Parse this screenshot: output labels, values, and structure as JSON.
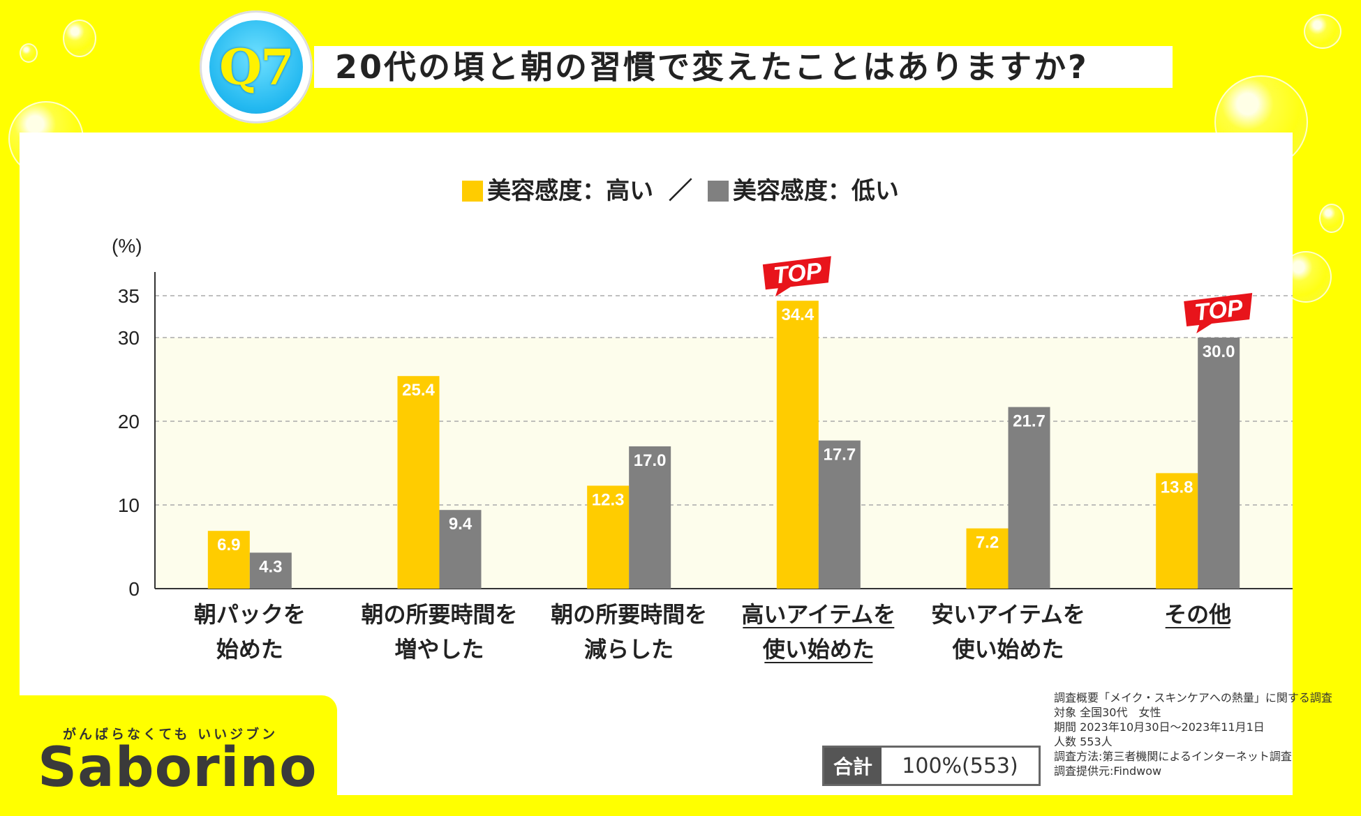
{
  "question": {
    "badge": "Q7",
    "title": "20代の頃と朝の習慣で変えたことはありますか?"
  },
  "legend": {
    "high": {
      "label": "美容感度：高い",
      "color": "#ffcc00"
    },
    "separator": "／",
    "low": {
      "label": "美容感度：低い",
      "color": "#808080"
    }
  },
  "top_badge_text": "TOP",
  "chart_data": {
    "type": "bar",
    "ylabel": "(%)",
    "ylim": [
      0,
      37.5
    ],
    "yticks": [
      0,
      10,
      20,
      30,
      35
    ],
    "grid": true,
    "categories": [
      [
        "朝パックを",
        "始めた"
      ],
      [
        "朝の所要時間を",
        "増やした"
      ],
      [
        "朝の所要時間を",
        "減らした"
      ],
      [
        "高いアイテムを",
        "使い始めた"
      ],
      [
        "安いアイテムを",
        "使い始めた"
      ],
      [
        "その他"
      ]
    ],
    "underlined_categories": [
      3,
      5
    ],
    "series": [
      {
        "name": "美容感度：高い",
        "color": "#ffcc00",
        "values": [
          6.9,
          25.4,
          12.3,
          34.4,
          7.2,
          13.8
        ]
      },
      {
        "name": "美容感度：低い",
        "color": "#808080",
        "values": [
          4.3,
          9.4,
          17.0,
          17.7,
          21.7,
          30.0
        ]
      }
    ],
    "top_marks": [
      {
        "category": 3,
        "series": 0
      },
      {
        "category": 5,
        "series": 1
      }
    ]
  },
  "footer": {
    "tagline": "がんばらなくても いいジブン",
    "brand": "Saborino",
    "total_label": "合計",
    "total_value": "100%(553)",
    "notes": [
      "調査概要「メイク・スキンケアへの熱量」に関する調査",
      "対象 全国30代　女性",
      "期間 2023年10月30日〜2023年11月1日",
      "人数 553人",
      "調査方法:第三者機関によるインターネット調査",
      "調査提供元:Findwow"
    ]
  }
}
